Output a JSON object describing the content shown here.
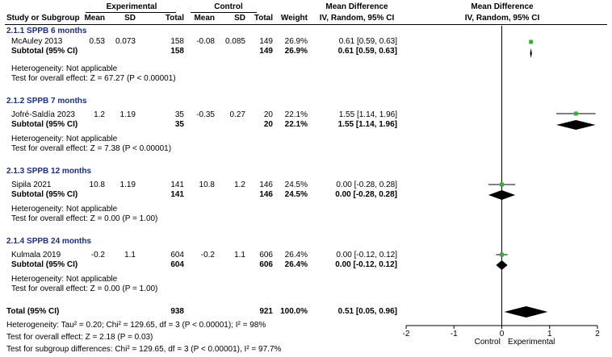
{
  "header": {
    "experimental": "Experimental",
    "control": "Control",
    "mean_difference": "Mean Difference",
    "mean_difference_plot": "Mean Difference",
    "columns": [
      "Study or Subgroup",
      "Mean",
      "SD",
      "Total",
      "Mean",
      "SD",
      "Total",
      "Weight",
      "IV, Random, 95% CI"
    ],
    "plot_method": "IV, Random, 95% CI"
  },
  "groups": [
    {
      "title": "2.1.1 SPPB 6 months",
      "study": {
        "name": "McAuley 2013",
        "e_mean": "0.53",
        "e_sd": "0.073",
        "e_total": "158",
        "c_mean": "-0.08",
        "c_sd": "0.085",
        "c_total": "149",
        "weight": "26.9%",
        "ci": "0.61 [0.59, 0.63]"
      },
      "subtotal": {
        "label": "Subtotal (95% CI)",
        "e_total": "158",
        "c_total": "149",
        "weight": "26.9%",
        "ci": "0.61 [0.59, 0.63]"
      },
      "heterogeneity": "Heterogeneity: Not applicable",
      "overall": "Test for overall effect: Z = 67.27 (P < 0.00001)"
    },
    {
      "title": "2.1.2 SPPB 7 months",
      "study": {
        "name": "Jofré-Saldía 2023",
        "e_mean": "1.2",
        "e_sd": "1.19",
        "e_total": "35",
        "c_mean": "-0.35",
        "c_sd": "0.27",
        "c_total": "20",
        "weight": "22.1%",
        "ci": "1.55 [1.14, 1.96]"
      },
      "subtotal": {
        "label": "Subtotal (95% CI)",
        "e_total": "35",
        "c_total": "20",
        "weight": "22.1%",
        "ci": "1.55 [1.14, 1.96]"
      },
      "heterogeneity": "Heterogeneity: Not applicable",
      "overall": "Test for overall effect: Z = 7.38 (P < 0.00001)"
    },
    {
      "title": "2.1.3 SPPB 12 months",
      "study": {
        "name": "Sipila 2021",
        "e_mean": "10.8",
        "e_sd": "1.19",
        "e_total": "141",
        "c_mean": "10.8",
        "c_sd": "1.2",
        "c_total": "146",
        "weight": "24.5%",
        "ci": "0.00 [-0.28, 0.28]"
      },
      "subtotal": {
        "label": "Subtotal (95% CI)",
        "e_total": "141",
        "c_total": "146",
        "weight": "24.5%",
        "ci": "0.00 [-0.28, 0.28]"
      },
      "heterogeneity": "Heterogeneity: Not applicable",
      "overall": "Test for overall effect: Z = 0.00 (P = 1.00)"
    },
    {
      "title": "2.1.4 SPPB 24 months",
      "study": {
        "name": "Kulmala 2019",
        "e_mean": "-0.2",
        "e_sd": "1.1",
        "e_total": "604",
        "c_mean": "-0.2",
        "c_sd": "1.1",
        "c_total": "606",
        "weight": "26.4%",
        "ci": "0.00 [-0.12, 0.12]"
      },
      "subtotal": {
        "label": "Subtotal (95% CI)",
        "e_total": "604",
        "c_total": "606",
        "weight": "26.4%",
        "ci": "0.00 [-0.12, 0.12]"
      },
      "heterogeneity": "Heterogeneity: Not applicable",
      "overall": "Test for overall effect: Z = 0.00 (P = 1.00)"
    }
  ],
  "total": {
    "label": "Total (95% CI)",
    "e_total": "938",
    "c_total": "921",
    "weight": "100.0%",
    "ci": "0.51 [0.05, 0.96]",
    "heterogeneity": "Heterogeneity: Tau² = 0.20; Chi² = 129.65, df = 3 (P < 0.00001); I² = 98%",
    "overall": "Test for overall effect: Z = 2.18 (P = 0.03)",
    "subgroup": "Test for subgroup differences: Chi² = 129.65, df = 3 (P < 0.00001), I² = 97.7%"
  },
  "axis": {
    "ticks": [
      -2,
      -1,
      0,
      1,
      2
    ],
    "tick_labels": [
      "-2",
      "-1",
      "0",
      "1",
      "2"
    ],
    "left_label": "Control",
    "right_label": "Experimental"
  },
  "colors": {
    "square": "#2db52d",
    "diamond": "#000000",
    "section": "#1a2f7a"
  },
  "chart_data": {
    "type": "forest",
    "xlim": [
      -2,
      2
    ],
    "studies": [
      {
        "name": "McAuley 2013",
        "md": 0.61,
        "lo": 0.59,
        "hi": 0.63,
        "weight": 26.9
      },
      {
        "name": "Jofré-Saldía 2023",
        "md": 1.55,
        "lo": 1.14,
        "hi": 1.96,
        "weight": 22.1
      },
      {
        "name": "Sipila 2021",
        "md": 0.0,
        "lo": -0.28,
        "hi": 0.28,
        "weight": 24.5
      },
      {
        "name": "Kulmala 2019",
        "md": 0.0,
        "lo": -0.12,
        "hi": 0.12,
        "weight": 26.4
      }
    ],
    "subtotals": [
      {
        "md": 0.61,
        "lo": 0.59,
        "hi": 0.63
      },
      {
        "md": 1.55,
        "lo": 1.14,
        "hi": 1.96
      },
      {
        "md": 0.0,
        "lo": -0.28,
        "hi": 0.28
      },
      {
        "md": 0.0,
        "lo": -0.12,
        "hi": 0.12
      }
    ],
    "overall": {
      "md": 0.51,
      "lo": 0.05,
      "hi": 0.96
    }
  }
}
